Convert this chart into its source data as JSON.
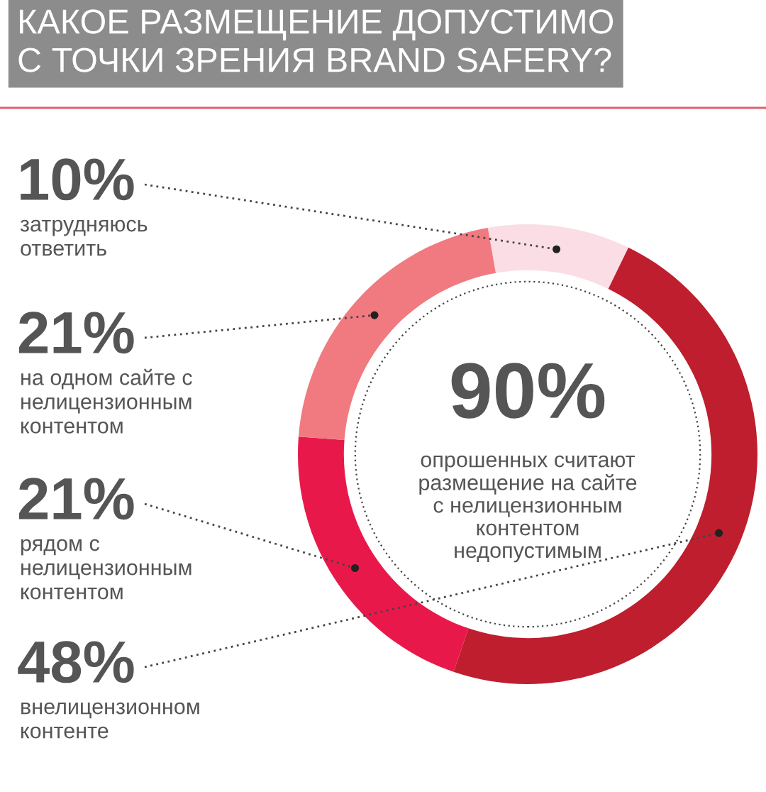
{
  "chart_data": {
    "type": "donut",
    "title": "КАКОЕ РАЗМЕЩЕНИЕ ДОПУСТИМО\nС ТОЧКИ ЗРЕНИЯ BRAND SAFERY?",
    "categories": [
      "затрудняюсь\nответить",
      "внелицензионном\nконтенте",
      "рядом с\nнелицензионным\nконтентом",
      "на одном сайте с\nнелицензионным\nконтентом"
    ],
    "values": [
      10,
      48,
      21,
      21
    ],
    "value_labels": [
      "10%",
      "48%",
      "21%",
      "21%"
    ],
    "colors": [
      "#fbdde6",
      "#be1e2d",
      "#e8194a",
      "#f07a80"
    ],
    "annotations": [
      "90%",
      "опрошенных считают\nразмещение на сайте\nс нелицензионным\nконтентом\nнедопустимым"
    ]
  }
}
